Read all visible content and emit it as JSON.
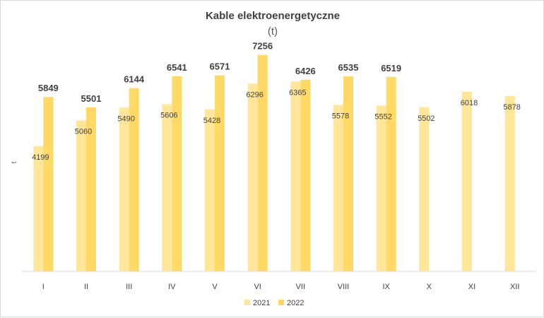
{
  "chart_data": {
    "type": "bar",
    "title": "Kable elektroenergetyczne",
    "subtitle": "(t)",
    "ylabel": "t",
    "xlabel": "",
    "categories": [
      "I",
      "II",
      "III",
      "IV",
      "V",
      "VI",
      "VII",
      "VIII",
      "IX",
      "X",
      "XI",
      "XII"
    ],
    "series": [
      {
        "name": "2021",
        "color": "#FFE699",
        "values": [
          4199,
          5060,
          5490,
          5606,
          5428,
          6296,
          6365,
          5578,
          5552,
          5502,
          6018,
          5878
        ]
      },
      {
        "name": "2022",
        "color": "#FFD966",
        "values": [
          5849,
          5501,
          6144,
          6541,
          6571,
          7256,
          6426,
          6535,
          6519,
          null,
          null,
          null
        ]
      }
    ],
    "ylim": [
      0,
      7700
    ],
    "grid": false,
    "legend_position": "bottom"
  }
}
